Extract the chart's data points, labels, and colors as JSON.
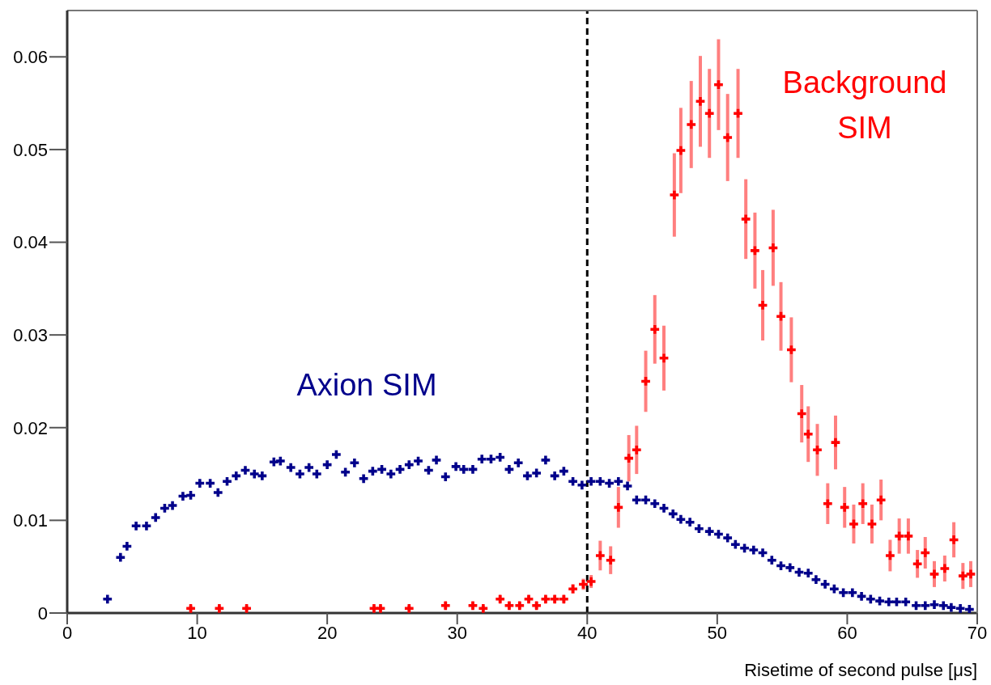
{
  "chart_data": {
    "type": "scatter",
    "xlabel": "Risetime of second pulse [μs]",
    "xlim": [
      0,
      70
    ],
    "xticks": [
      0,
      10,
      20,
      30,
      40,
      50,
      60,
      70
    ],
    "ylim": [
      0,
      0.065
    ],
    "yticks": [
      0,
      0.01,
      0.02,
      0.03,
      0.04,
      0.05,
      0.06
    ],
    "grid": false,
    "legend": false,
    "marker": "cross",
    "ref_lines": [
      {
        "axis": "x",
        "value": 40,
        "color": "#000000",
        "line_style": "dashed"
      }
    ],
    "series": [
      {
        "name": "Axion SIM",
        "color": "#00008b",
        "x": [
          3.1,
          4.1,
          4.6,
          5.3,
          6.1,
          6.8,
          7.5,
          8.1,
          8.9,
          9.5,
          10.2,
          11.0,
          11.6,
          12.3,
          13.0,
          13.7,
          14.4,
          15.0,
          15.9,
          16.4,
          17.2,
          17.9,
          18.6,
          19.2,
          20.0,
          20.7,
          21.4,
          22.1,
          22.8,
          23.5,
          24.2,
          24.9,
          25.6,
          26.3,
          27.0,
          27.8,
          28.4,
          29.1,
          29.9,
          30.5,
          31.2,
          31.9,
          32.6,
          33.3,
          34.0,
          34.7,
          35.4,
          36.1,
          36.8,
          37.5,
          38.2,
          38.9,
          39.6,
          40.3,
          41.0,
          41.7,
          42.4,
          43.1,
          43.8,
          44.5,
          45.2,
          45.9,
          46.6,
          47.2,
          47.9,
          48.6,
          49.4,
          50.1,
          50.8,
          51.4,
          52.1,
          52.8,
          53.5,
          54.2,
          54.9,
          55.6,
          56.3,
          57.0,
          57.6,
          58.3,
          59.0,
          59.7,
          60.4,
          61.1,
          61.8,
          62.5,
          63.2,
          63.8,
          64.5,
          65.3,
          66.0,
          66.7,
          67.4,
          68.0,
          68.7,
          69.4
        ],
        "values": [
          0.0015,
          0.006,
          0.0072,
          0.0094,
          0.0094,
          0.0103,
          0.0113,
          0.0116,
          0.0126,
          0.0127,
          0.014,
          0.014,
          0.013,
          0.0142,
          0.0148,
          0.0154,
          0.015,
          0.0148,
          0.0163,
          0.0164,
          0.0157,
          0.015,
          0.0157,
          0.015,
          0.016,
          0.0171,
          0.0152,
          0.0162,
          0.0145,
          0.0153,
          0.0155,
          0.015,
          0.0155,
          0.016,
          0.0164,
          0.0154,
          0.0165,
          0.0147,
          0.0158,
          0.0155,
          0.0155,
          0.0166,
          0.0166,
          0.0168,
          0.0155,
          0.0162,
          0.0148,
          0.0151,
          0.0165,
          0.0148,
          0.0153,
          0.0142,
          0.0138,
          0.0142,
          0.0142,
          0.014,
          0.0142,
          0.0137,
          0.0122,
          0.0122,
          0.0118,
          0.0113,
          0.0107,
          0.0101,
          0.0098,
          0.0091,
          0.0088,
          0.0085,
          0.0081,
          0.0074,
          0.007,
          0.0068,
          0.0065,
          0.0057,
          0.0051,
          0.0049,
          0.0044,
          0.0043,
          0.0036,
          0.0031,
          0.0026,
          0.0022,
          0.0022,
          0.0018,
          0.0015,
          0.0013,
          0.0012,
          0.0012,
          0.0012,
          0.0008,
          0.0008,
          0.0009,
          0.0008,
          0.0006,
          0.0005,
          0.0004
        ]
      },
      {
        "name": "Background SIM",
        "color": "#ff0000",
        "x": [
          9.5,
          11.7,
          13.8,
          23.6,
          24.1,
          26.3,
          29.1,
          31.2,
          32.0,
          33.3,
          34.0,
          34.8,
          35.5,
          36.1,
          36.8,
          37.5,
          38.2,
          38.9,
          39.7,
          40.3,
          41.0,
          41.8,
          42.4,
          43.2,
          43.8,
          44.5,
          45.2,
          45.9,
          46.7,
          47.2,
          48.0,
          48.7,
          49.4,
          50.1,
          50.8,
          51.6,
          52.2,
          52.9,
          53.5,
          54.3,
          54.9,
          55.7,
          56.5,
          57.0,
          57.7,
          58.5,
          59.1,
          59.8,
          60.5,
          61.2,
          61.9,
          62.6,
          63.3,
          64.0,
          64.7,
          65.4,
          66.0,
          66.7,
          67.5,
          68.2,
          68.9,
          69.5
        ],
        "values": [
          0.0005,
          0.0005,
          0.0005,
          0.0005,
          0.0005,
          0.0005,
          0.0008,
          0.0008,
          0.0005,
          0.0015,
          0.0008,
          0.0008,
          0.0015,
          0.0008,
          0.0015,
          0.0015,
          0.0015,
          0.0026,
          0.0031,
          0.0034,
          0.0062,
          0.0057,
          0.0114,
          0.0167,
          0.0176,
          0.025,
          0.0306,
          0.0275,
          0.0451,
          0.0499,
          0.0527,
          0.0552,
          0.0539,
          0.057,
          0.0513,
          0.0539,
          0.0425,
          0.0391,
          0.0332,
          0.0394,
          0.032,
          0.0284,
          0.0215,
          0.0193,
          0.0176,
          0.0118,
          0.0184,
          0.0114,
          0.0096,
          0.0118,
          0.0096,
          0.0122,
          0.0062,
          0.0083,
          0.0083,
          0.0053,
          0.0065,
          0.0042,
          0.0048,
          0.0079,
          0.004,
          0.0042
        ],
        "errors": [
          0.0003,
          0.0003,
          0.0003,
          0.0003,
          0.0003,
          0.0003,
          0.0004,
          0.0004,
          0.0003,
          0.0004,
          0.0004,
          0.0004,
          0.0004,
          0.0004,
          0.0004,
          0.0004,
          0.0004,
          0.0005,
          0.0006,
          0.0007,
          0.0016,
          0.0015,
          0.0022,
          0.0025,
          0.0026,
          0.0033,
          0.0037,
          0.0035,
          0.0045,
          0.0046,
          0.0047,
          0.0049,
          0.0048,
          0.0049,
          0.0047,
          0.0048,
          0.0043,
          0.0041,
          0.0038,
          0.0041,
          0.0037,
          0.0035,
          0.0031,
          0.003,
          0.0028,
          0.0022,
          0.0029,
          0.0022,
          0.0021,
          0.0022,
          0.0021,
          0.0022,
          0.0017,
          0.0019,
          0.0019,
          0.0015,
          0.0017,
          0.0014,
          0.0014,
          0.0019,
          0.0014,
          0.0014
        ]
      }
    ]
  }
}
